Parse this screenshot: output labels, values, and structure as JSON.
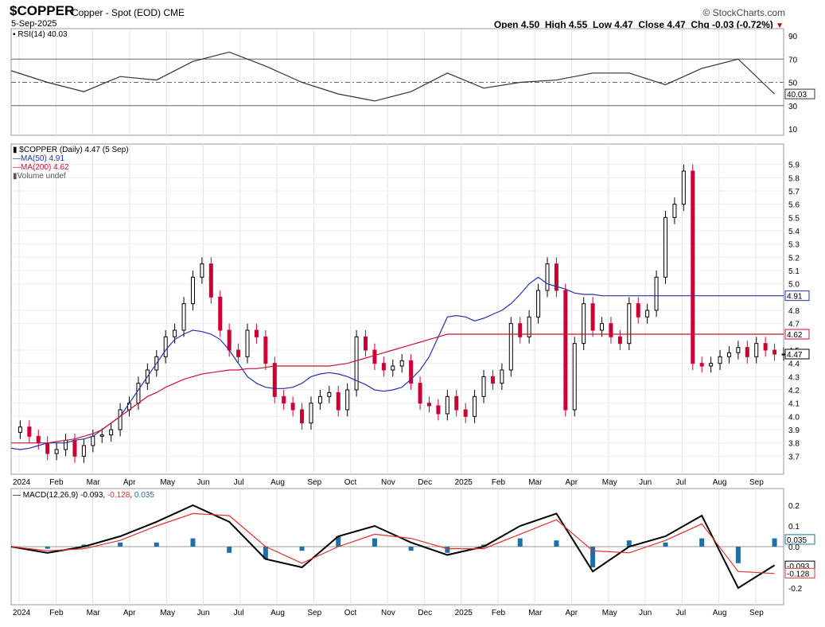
{
  "header": {
    "symbol": "$COPPER",
    "description": "Copper - Spot (EOD) CME",
    "date": "5-Sep-2025",
    "brand": "© StockCharts.com",
    "open_label": "Open",
    "open": "4.50",
    "high_label": "High",
    "high": "4.55",
    "low_label": "Low",
    "low": "4.47",
    "close_label": "Close",
    "close": "4.47",
    "chg_label": "Chg",
    "chg": "-0.03 (-0.72%)"
  },
  "chart_data": [
    {
      "type": "line",
      "title": "RSI(14) 40.03",
      "legend": "RSI(14) 40.03",
      "ylim": [
        10,
        90
      ],
      "yticks": [
        "90",
        "70",
        "50",
        "30",
        "10"
      ],
      "overbought": 70,
      "oversold": 30,
      "midline": 50,
      "current_label": "40.03",
      "x": [
        0,
        4,
        8,
        12,
        16,
        20,
        24,
        28,
        32,
        36,
        40,
        44,
        48,
        52,
        56,
        60,
        64,
        68,
        72,
        76,
        80,
        84
      ],
      "values": [
        60,
        50,
        42,
        55,
        52,
        68,
        76,
        64,
        50,
        40,
        34,
        42,
        58,
        45,
        50,
        52,
        58,
        58,
        48,
        62,
        70,
        40
      ]
    },
    {
      "type": "line",
      "title": "$COPPER (Daily) 4.47 (5 Sep)",
      "legend": [
        "$COPPER (Daily) 4.47 (5 Sep)",
        "MA(50) 4.91",
        "MA(200) 4.62",
        "Volume undef"
      ],
      "ylim": [
        3.6,
        6.0
      ],
      "yticks": [
        "5.9",
        "5.8",
        "5.7",
        "5.6",
        "5.5",
        "5.4",
        "5.3",
        "5.2",
        "5.1",
        "5.0",
        "4.8",
        "4.7",
        "4.5",
        "4.4",
        "4.3",
        "4.2",
        "4.1",
        "4.0",
        "3.9",
        "3.8",
        "3.7"
      ],
      "price_label": "4.47",
      "ma50_label": "4.91",
      "ma200_label": "4.62",
      "x": [
        0,
        1,
        2,
        3,
        4,
        5,
        6,
        7,
        8,
        9,
        10,
        11,
        12,
        13,
        14,
        15,
        16,
        17,
        18,
        19,
        20,
        21,
        22,
        23,
        24,
        25,
        26,
        27,
        28,
        29,
        30,
        31,
        32,
        33,
        34,
        35,
        36,
        37,
        38,
        39,
        40,
        41,
        42,
        43,
        44,
        45,
        46,
        47,
        48,
        49,
        50,
        51,
        52,
        53,
        54,
        55,
        56,
        57,
        58,
        59,
        60,
        61,
        62,
        63,
        64,
        65,
        66,
        67,
        68,
        69,
        70,
        71,
        72,
        73,
        74,
        75,
        76,
        77,
        78,
        79,
        80,
        81,
        82,
        83,
        84,
        85
      ],
      "close": [
        3.88,
        3.92,
        3.85,
        3.8,
        3.72,
        3.75,
        3.82,
        3.7,
        3.78,
        3.85,
        3.86,
        3.9,
        4.05,
        4.1,
        4.25,
        4.35,
        4.45,
        4.6,
        4.65,
        4.85,
        5.05,
        5.15,
        4.9,
        4.65,
        4.5,
        4.45,
        4.65,
        4.6,
        4.4,
        4.15,
        4.1,
        4.05,
        3.95,
        4.1,
        4.15,
        4.18,
        4.05,
        4.2,
        4.6,
        4.5,
        4.4,
        4.35,
        4.38,
        4.42,
        4.25,
        4.1,
        4.08,
        4.02,
        4.15,
        4.05,
        4.0,
        4.15,
        4.3,
        4.25,
        4.35,
        4.7,
        4.6,
        4.75,
        4.95,
        5.15,
        4.95,
        4.05,
        4.55,
        4.85,
        4.65,
        4.7,
        4.6,
        4.55,
        4.85,
        4.75,
        4.8,
        5.05,
        5.5,
        5.6,
        5.85,
        4.4,
        4.38,
        4.4,
        4.45,
        4.48,
        4.52,
        4.45,
        4.55,
        4.5,
        4.47,
        4.47
      ],
      "ma50": [
        3.76,
        3.75,
        3.76,
        3.78,
        3.8,
        3.8,
        3.8,
        3.82,
        3.83,
        3.85,
        3.9,
        3.95,
        4.0,
        4.1,
        4.2,
        4.3,
        4.4,
        4.5,
        4.58,
        4.62,
        4.65,
        4.64,
        4.62,
        4.58,
        4.5,
        4.4,
        4.3,
        4.25,
        4.22,
        4.21,
        4.21,
        4.22,
        4.25,
        4.3,
        4.32,
        4.33,
        4.32,
        4.3,
        4.27,
        4.24,
        4.2,
        4.19,
        4.2,
        4.22,
        4.28,
        4.35,
        4.45,
        4.6,
        4.75,
        4.76,
        4.75,
        4.72,
        4.74,
        4.77,
        4.8,
        4.85,
        4.92,
        5.0,
        5.05,
        5.0,
        4.98,
        4.96,
        4.93,
        4.92,
        4.92,
        4.91,
        4.91,
        4.91,
        4.91,
        4.91,
        4.91,
        4.91,
        4.91,
        4.91,
        4.91,
        4.91,
        4.91,
        4.91,
        4.91,
        4.91,
        4.91,
        4.91,
        4.91,
        4.91,
        4.91,
        4.91
      ],
      "ma200": [
        3.8,
        3.8,
        3.8,
        3.8,
        3.8,
        3.81,
        3.82,
        3.83,
        3.85,
        3.87,
        3.9,
        3.95,
        4.0,
        4.05,
        4.1,
        4.15,
        4.18,
        4.22,
        4.25,
        4.28,
        4.3,
        4.32,
        4.33,
        4.34,
        4.35,
        4.35,
        4.36,
        4.36,
        4.37,
        4.38,
        4.38,
        4.38,
        4.38,
        4.38,
        4.38,
        4.38,
        4.39,
        4.4,
        4.42,
        4.44,
        4.46,
        4.48,
        4.5,
        4.52,
        4.54,
        4.56,
        4.58,
        4.6,
        4.62,
        4.62,
        4.62,
        4.62,
        4.62,
        4.62,
        4.62,
        4.62,
        4.62,
        4.62,
        4.62,
        4.62,
        4.62,
        4.62,
        4.62,
        4.62,
        4.62,
        4.62,
        4.62,
        4.62,
        4.62,
        4.62,
        4.62,
        4.62,
        4.62,
        4.62,
        4.62,
        4.62,
        4.62,
        4.62,
        4.62,
        4.62,
        4.62,
        4.62,
        4.62,
        4.62,
        4.62,
        4.62
      ]
    },
    {
      "type": "line",
      "title": "MACD(12,26,9) -0.093, -0.128, 0.035",
      "legend_name": "MACD(12,26,9)",
      "legend_macd": "-0.093",
      "legend_signal": "-0.128",
      "legend_hist": "0.035",
      "ylim": [
        -0.25,
        0.25
      ],
      "yticks": [
        "0.2",
        "0.1",
        "0.0",
        "-0.2"
      ],
      "labels": [
        "0.035",
        "-0.093",
        "-0.128"
      ],
      "x": [
        0,
        4,
        8,
        12,
        16,
        20,
        24,
        28,
        32,
        36,
        40,
        44,
        48,
        52,
        56,
        60,
        64,
        68,
        72,
        76,
        80,
        84
      ],
      "macd": [
        0.0,
        -0.03,
        0.0,
        0.05,
        0.12,
        0.2,
        0.12,
        -0.06,
        -0.1,
        0.05,
        0.1,
        0.02,
        -0.04,
        0.0,
        0.1,
        0.16,
        -0.12,
        0.0,
        0.05,
        0.15,
        -0.2,
        -0.09
      ],
      "signal": [
        0.0,
        -0.02,
        -0.01,
        0.03,
        0.1,
        0.16,
        0.15,
        0.0,
        -0.08,
        0.0,
        0.06,
        0.04,
        -0.01,
        -0.01,
        0.06,
        0.13,
        -0.02,
        -0.03,
        0.03,
        0.11,
        -0.12,
        -0.13
      ]
    }
  ],
  "months_top": [
    "2024",
    "Feb",
    "Mar",
    "Apr",
    "May",
    "Jun",
    "Jul",
    "Aug",
    "Sep",
    "Oct",
    "Nov",
    "Dec",
    "2025",
    "Feb",
    "Mar",
    "Apr",
    "May",
    "Jun",
    "Jul",
    "Aug",
    "Sep"
  ],
  "colors": {
    "price_up": "#000000",
    "price_down": "#cc0033",
    "ma50": "#2233aa",
    "ma200": "#cc1133",
    "macd_signal": "#e03030",
    "hist": "#1f6fa8",
    "rsi_fill": "#4a8a4a"
  }
}
